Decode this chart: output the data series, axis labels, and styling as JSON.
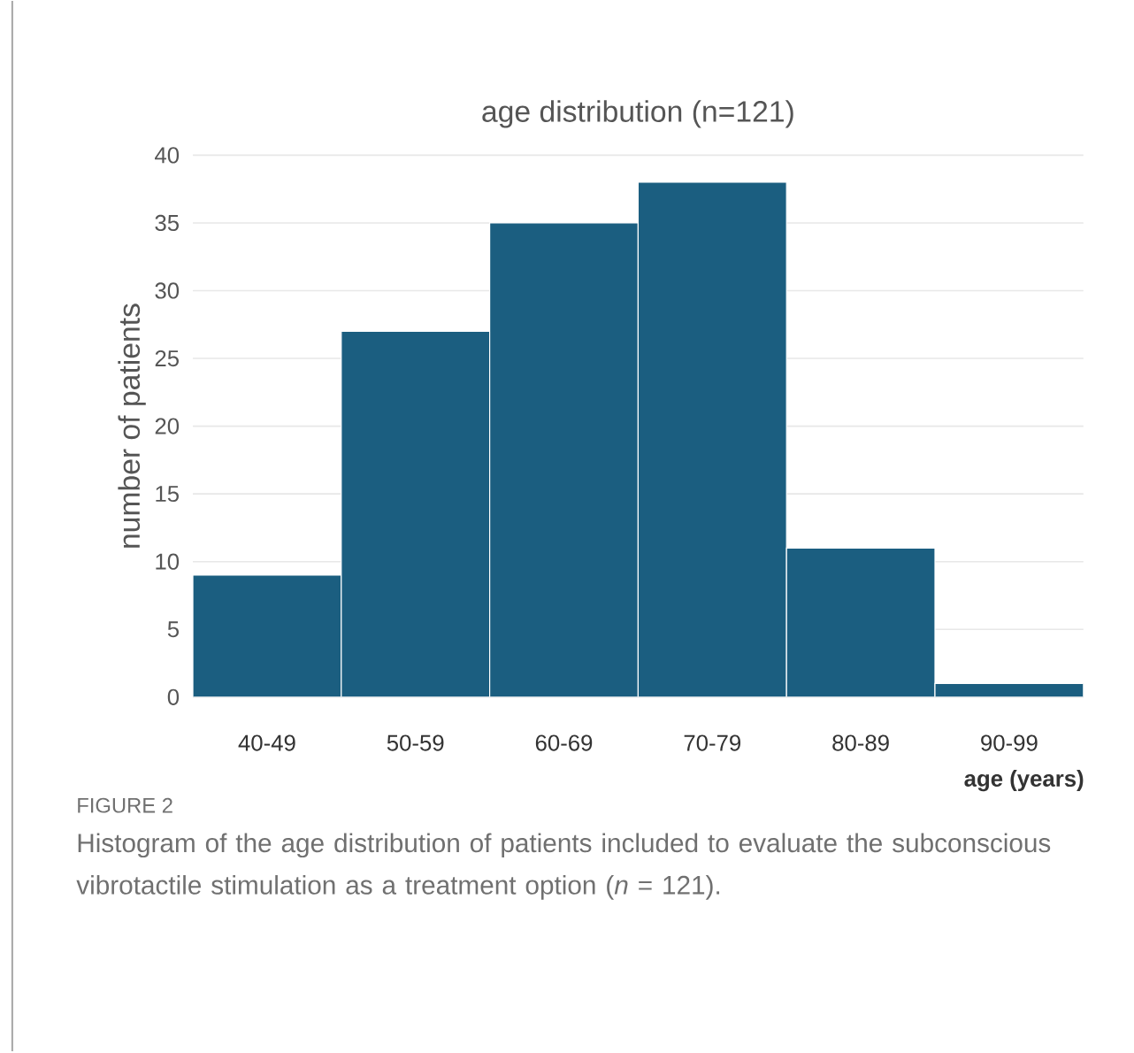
{
  "chart_data": {
    "type": "bar",
    "title": "age distribution (n=121)",
    "xlabel": "age (years)",
    "ylabel": "number of patients",
    "categories": [
      "40-49",
      "50-59",
      "60-69",
      "70-79",
      "80-89",
      "90-99"
    ],
    "values": [
      9,
      27,
      35,
      38,
      11,
      1
    ],
    "color": "#1b5e80",
    "ylim": [
      0,
      40
    ],
    "yticks": [
      0,
      5,
      10,
      15,
      20,
      25,
      30,
      35,
      40
    ],
    "grid": "y",
    "annotations": [
      "FIGURE 2",
      "Histogram of the age distribution of patients included to evaluate the subconscious vibrotactile stimulation as a treatment option (*n* = 121)."
    ]
  }
}
